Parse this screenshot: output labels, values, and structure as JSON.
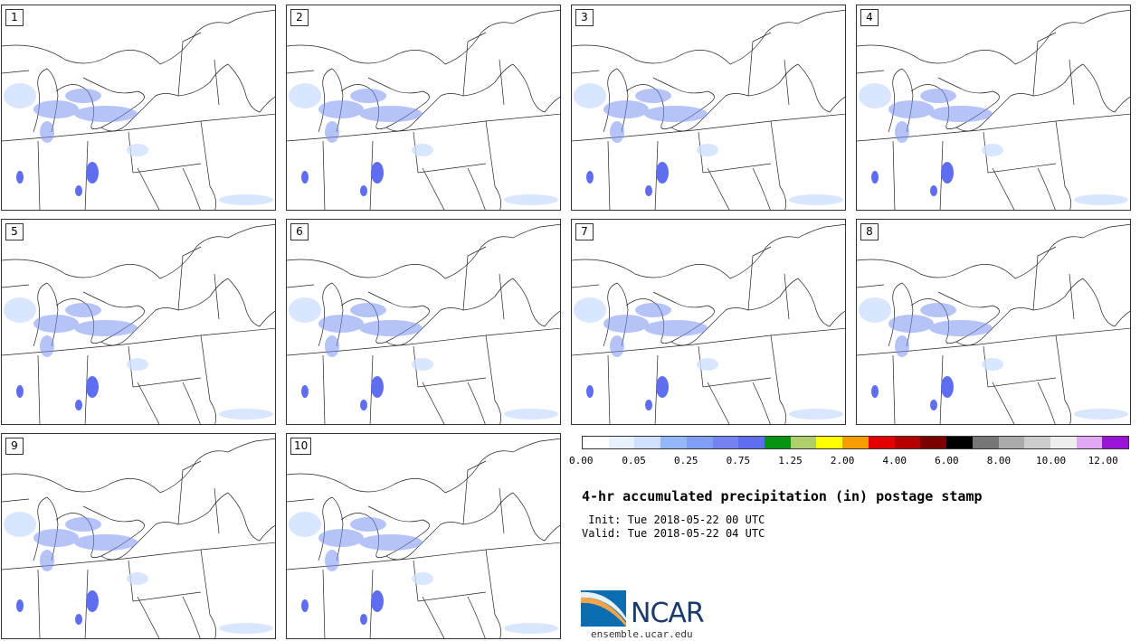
{
  "members": [
    "1",
    "2",
    "3",
    "4",
    "5",
    "6",
    "7",
    "8",
    "9",
    "10"
  ],
  "title": "4-hr accumulated precipitation (in) postage stamp",
  "init_line": " Init: Tue 2018-05-22 00 UTC",
  "valid_line": "Valid: Tue 2018-05-22 04 UTC",
  "colorbar": {
    "colors": [
      "#ffffff",
      "#e8f2ff",
      "#cfe0ff",
      "#93b8fa",
      "#7f9ef5",
      "#7482f2",
      "#5f6ef0",
      "#079413",
      "#b0cf6c",
      "#ffff00",
      "#f79d00",
      "#e30000",
      "#b60000",
      "#7a0000",
      "#000000",
      "#777777",
      "#aaaaaa",
      "#cccccc",
      "#eeeeee",
      "#e0a8f5",
      "#9814d6"
    ],
    "tick_labels": [
      "0.00",
      "0.05",
      "0.25",
      "0.75",
      "1.25",
      "2.00",
      "4.00",
      "6.00",
      "8.00",
      "10.00",
      "12.00"
    ]
  },
  "logo": {
    "text": "NCAR",
    "url": "ensemble.ucar.edu",
    "colors": [
      "#0b6db1",
      "#f5a447"
    ]
  }
}
